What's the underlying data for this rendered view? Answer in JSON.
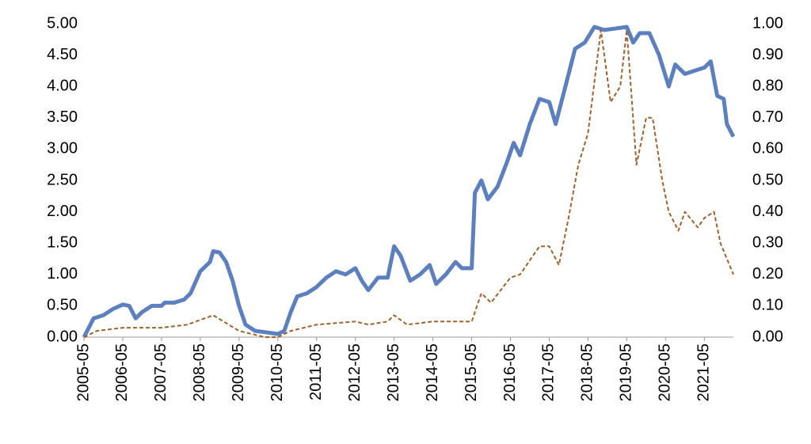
{
  "chart_data": {
    "type": "line",
    "xlim": [
      "2005-05",
      "2022-02"
    ],
    "xticks": [
      "2005-05",
      "2006-05",
      "2007-05",
      "2008-05",
      "2009-05",
      "2010-05",
      "2011-05",
      "2012-05",
      "2013-05",
      "2014-05",
      "2015-05",
      "2016-05",
      "2017-05",
      "2018-05",
      "2019-05",
      "2020-05",
      "2021-05"
    ],
    "ylim": [
      0,
      5
    ],
    "yticks": [
      {
        "value": 0,
        "label": "0.00"
      },
      {
        "value": 0.5,
        "label": "0.50"
      },
      {
        "value": 1,
        "label": "1.00"
      },
      {
        "value": 1.5,
        "label": "1.50"
      },
      {
        "value": 2,
        "label": "2.00"
      },
      {
        "value": 2.5,
        "label": "2.50"
      },
      {
        "value": 3,
        "label": "3.00"
      },
      {
        "value": 3.5,
        "label": "3.50"
      },
      {
        "value": 4,
        "label": "4.00"
      },
      {
        "value": 4.5,
        "label": "4.50"
      },
      {
        "value": 5,
        "label": "5.00"
      }
    ],
    "y2lim": [
      0,
      1
    ],
    "y2ticks": [
      {
        "value": 0,
        "label": "0.00"
      },
      {
        "value": 0.1,
        "label": "0.10"
      },
      {
        "value": 0.2,
        "label": "0.20"
      },
      {
        "value": 0.3,
        "label": "0.30"
      },
      {
        "value": 0.4,
        "label": "0.40"
      },
      {
        "value": 0.5,
        "label": "0.50"
      },
      {
        "value": 0.6,
        "label": "0.60"
      },
      {
        "value": 0.7,
        "label": "0.70"
      },
      {
        "value": 0.8,
        "label": "0.80"
      },
      {
        "value": 0.9,
        "label": "0.90"
      },
      {
        "value": 1,
        "label": "1.00"
      }
    ],
    "series": [
      {
        "color": "#5b7fbf",
        "axis": "y",
        "dash": false,
        "x": [
          "2005-05",
          "2005-08",
          "2005-11",
          "2006-02",
          "2006-05",
          "2006-07",
          "2006-09",
          "2006-11",
          "2007-02",
          "2007-05",
          "2007-06",
          "2007-09",
          "2007-12",
          "2008-02",
          "2008-05",
          "2008-08",
          "2008-09",
          "2008-11",
          "2009-01",
          "2009-03",
          "2009-05",
          "2009-07",
          "2009-10",
          "2010-01",
          "2010-05",
          "2010-07",
          "2010-09",
          "2010-11",
          "2011-02",
          "2011-05",
          "2011-08",
          "2011-11",
          "2012-02",
          "2012-05",
          "2012-07",
          "2012-09",
          "2012-12",
          "2013-03",
          "2013-05",
          "2013-07",
          "2013-10",
          "2014-01",
          "2014-04",
          "2014-06",
          "2014-09",
          "2014-12",
          "2015-02",
          "2015-05",
          "2015-06",
          "2015-08",
          "2015-10",
          "2016-01",
          "2016-04",
          "2016-06",
          "2016-08",
          "2016-11",
          "2017-02",
          "2017-05",
          "2017-07",
          "2017-10",
          "2018-01",
          "2018-04",
          "2018-07",
          "2018-10",
          "2019-01",
          "2019-05",
          "2019-07",
          "2019-09",
          "2019-12",
          "2020-03",
          "2020-06",
          "2020-08",
          "2020-11",
          "2021-02",
          "2021-05",
          "2021-07",
          "2021-09",
          "2021-11",
          "2021-12",
          "2022-02"
        ],
        "values": [
          0.0,
          0.3,
          0.35,
          0.45,
          0.52,
          0.5,
          0.3,
          0.4,
          0.5,
          0.5,
          0.55,
          0.55,
          0.6,
          0.7,
          1.05,
          1.2,
          1.37,
          1.35,
          1.2,
          0.9,
          0.5,
          0.2,
          0.1,
          0.08,
          0.05,
          0.1,
          0.4,
          0.65,
          0.7,
          0.8,
          0.95,
          1.05,
          1.0,
          1.1,
          0.9,
          0.75,
          0.95,
          0.95,
          1.45,
          1.3,
          0.9,
          1.0,
          1.15,
          0.85,
          1.0,
          1.2,
          1.1,
          1.1,
          2.3,
          2.5,
          2.2,
          2.4,
          2.8,
          3.1,
          2.9,
          3.4,
          3.8,
          3.75,
          3.4,
          4.0,
          4.6,
          4.7,
          4.95,
          4.9,
          4.92,
          4.95,
          4.7,
          4.85,
          4.85,
          4.5,
          4.0,
          4.35,
          4.2,
          4.25,
          4.3,
          4.4,
          3.85,
          3.8,
          3.4,
          3.2
        ]
      },
      {
        "color": "#a0622d",
        "axis": "y2",
        "dash": true,
        "x": [
          "2005-05",
          "2005-09",
          "2006-05",
          "2007-05",
          "2008-01",
          "2008-09",
          "2009-05",
          "2010-01",
          "2010-05",
          "2010-09",
          "2011-05",
          "2012-05",
          "2012-09",
          "2013-03",
          "2013-05",
          "2013-09",
          "2014-05",
          "2015-05",
          "2015-08",
          "2015-11",
          "2016-05",
          "2016-08",
          "2017-02",
          "2017-05",
          "2017-08",
          "2017-11",
          "2018-02",
          "2018-05",
          "2018-09",
          "2018-12",
          "2019-03",
          "2019-05",
          "2019-08",
          "2019-11",
          "2020-01",
          "2020-04",
          "2020-06",
          "2020-09",
          "2020-11",
          "2021-03",
          "2021-05",
          "2021-08",
          "2021-10",
          "2021-12",
          "2022-02"
        ],
        "values": [
          0.0,
          0.02,
          0.03,
          0.03,
          0.04,
          0.07,
          0.02,
          0.0,
          0.0,
          0.02,
          0.04,
          0.05,
          0.04,
          0.05,
          0.07,
          0.04,
          0.05,
          0.05,
          0.14,
          0.11,
          0.19,
          0.2,
          0.29,
          0.29,
          0.23,
          0.38,
          0.55,
          0.65,
          0.98,
          0.75,
          0.8,
          0.98,
          0.55,
          0.7,
          0.7,
          0.5,
          0.4,
          0.34,
          0.4,
          0.35,
          0.38,
          0.4,
          0.3,
          0.25,
          0.2
        ]
      }
    ]
  }
}
